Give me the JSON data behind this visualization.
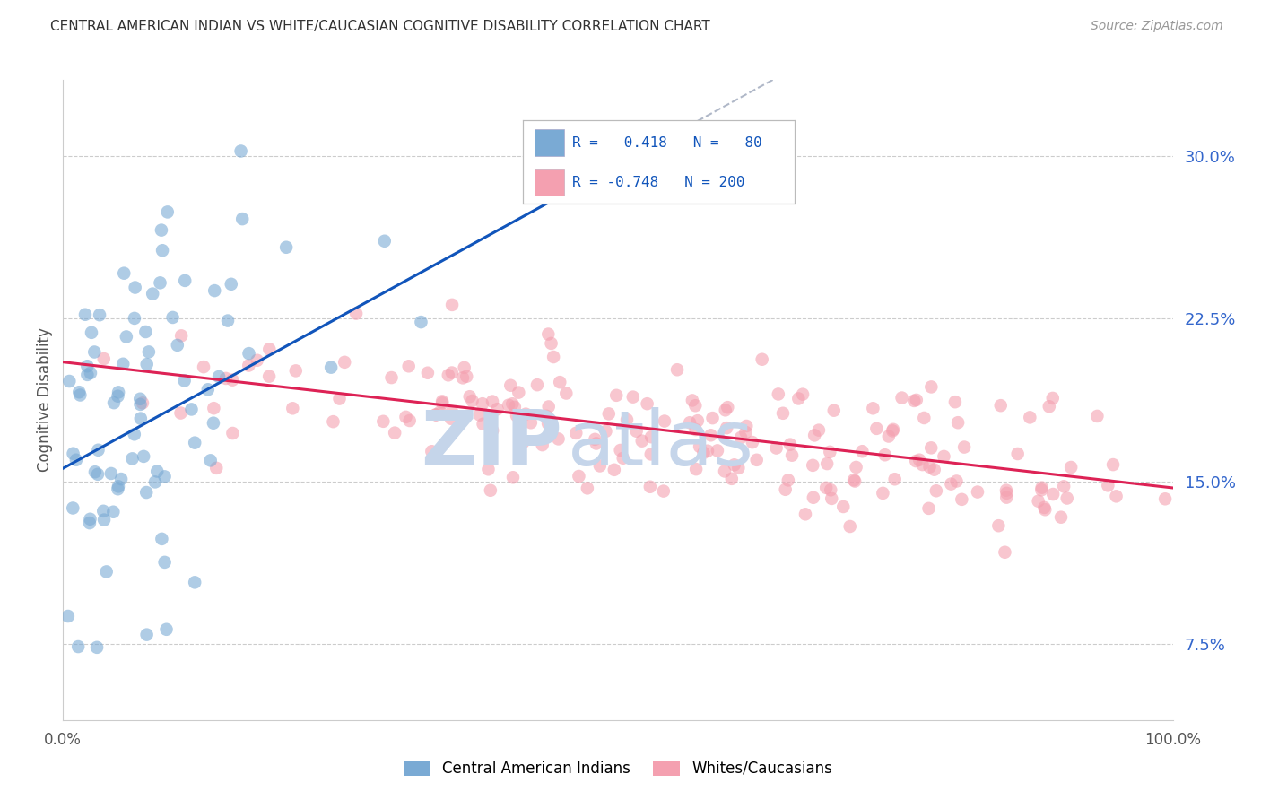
{
  "title": "CENTRAL AMERICAN INDIAN VS WHITE/CAUCASIAN COGNITIVE DISABILITY CORRELATION CHART",
  "source": "Source: ZipAtlas.com",
  "ylabel": "Cognitive Disability",
  "xlim": [
    0,
    1.0
  ],
  "ylim": [
    0.04,
    0.335
  ],
  "yticks": [
    0.075,
    0.15,
    0.225,
    0.3
  ],
  "ytick_labels": [
    "7.5%",
    "15.0%",
    "22.5%",
    "30.0%"
  ],
  "r_blue": 0.418,
  "n_blue": 80,
  "r_pink": -0.748,
  "n_pink": 200,
  "blue_color": "#7aaad4",
  "pink_color": "#f4a0b0",
  "trend_blue": "#1155bb",
  "trend_pink": "#dd2255",
  "trend_gray": "#b0b8c8",
  "background": "#ffffff",
  "watermark_zip_color": "#c5d5ea",
  "watermark_atlas_color": "#c5d5ea",
  "legend_r_color": "#1155bb",
  "grid_color": "#cccccc",
  "title_color": "#333333",
  "seed_blue": 42,
  "seed_pink": 7,
  "blue_intercept": 0.156,
  "blue_slope": 0.28,
  "pink_intercept": 0.205,
  "pink_slope": -0.058,
  "blue_scatter_std": 0.048,
  "pink_scatter_std": 0.018
}
